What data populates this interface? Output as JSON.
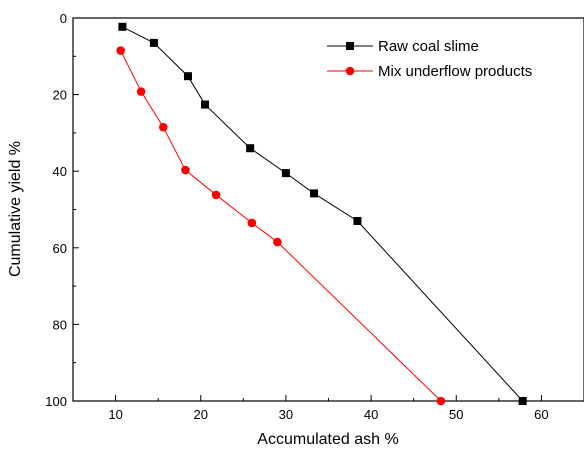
{
  "chart_data": {
    "type": "line",
    "title": "",
    "xlabel": "Accumulated ash %",
    "ylabel": "Cumulative yield %",
    "xlim": [
      5,
      65
    ],
    "ylim": [
      100,
      0
    ],
    "y_inverted": true,
    "x_ticks": [
      10,
      20,
      30,
      40,
      50,
      60
    ],
    "y_ticks": [
      0,
      20,
      40,
      60,
      80,
      100
    ],
    "grid": false,
    "legend_position": "top-right",
    "series": [
      {
        "name": "Raw coal slime",
        "color": "#000000",
        "marker": "square",
        "x": [
          10.8,
          14.5,
          18.5,
          20.5,
          25.8,
          30.0,
          33.3,
          38.4,
          57.8
        ],
        "y": [
          2.3,
          6.5,
          15.2,
          22.6,
          34.0,
          40.5,
          45.8,
          53.0,
          100
        ]
      },
      {
        "name": "Mix underflow products",
        "color": "#ff0000",
        "marker": "circle",
        "x": [
          10.6,
          13.0,
          15.6,
          18.2,
          21.8,
          26.0,
          29.0,
          48.2
        ],
        "y": [
          8.5,
          19.2,
          28.5,
          39.7,
          46.2,
          53.5,
          58.5,
          100
        ]
      }
    ]
  }
}
